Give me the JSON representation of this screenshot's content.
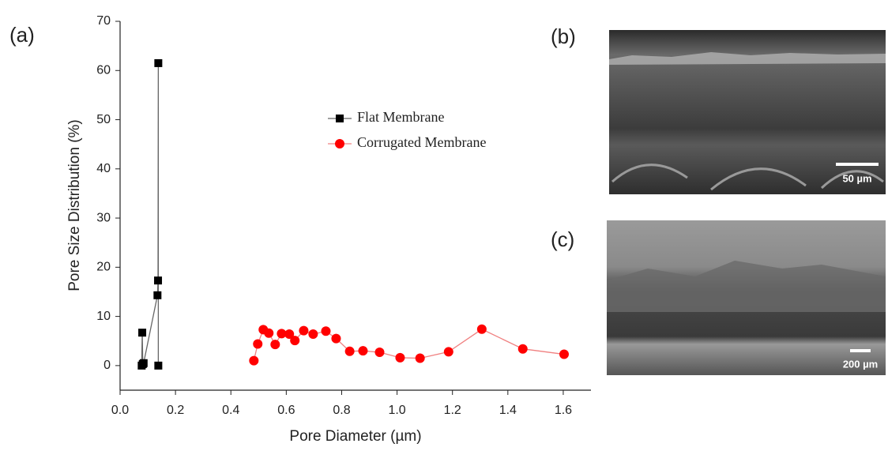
{
  "chart_data": {
    "type": "line",
    "x_label": "Pore Diameter (µm)",
    "y_label": "Pore Size Distribution (%)",
    "xlim": [
      0,
      1.7
    ],
    "ylim": [
      -5,
      70
    ],
    "xticks": [
      {
        "value": 0,
        "label": "0.0"
      },
      0.2,
      0.4,
      0.6,
      0.8,
      {
        "value": 1,
        "label": "1.0"
      },
      1.2,
      1.4,
      1.6
    ],
    "yticks": [
      0,
      10,
      20,
      30,
      40,
      50,
      60,
      70
    ],
    "legend": "upper right",
    "series": [
      {
        "name": "Flat Membrane",
        "color": "#000000",
        "line_color": "#666666",
        "marker": "square",
        "x": [
          0.078,
          0.08,
          0.082,
          0.085,
          0.135,
          0.137,
          0.138,
          0.138
        ],
        "values": [
          0,
          6.7,
          0.3,
          0.5,
          14.3,
          17.3,
          61.5,
          0
        ]
      },
      {
        "name": "Corrugated Membrane",
        "color": "#ff0000",
        "line_color": "#f08080",
        "marker": "circle",
        "x": [
          0.483,
          0.497,
          0.517,
          0.537,
          0.56,
          0.583,
          0.611,
          0.631,
          0.663,
          0.697,
          0.743,
          0.78,
          0.829,
          0.877,
          0.937,
          1.011,
          1.083,
          1.186,
          1.306,
          1.454,
          1.603
        ],
        "values": [
          1.0,
          4.4,
          7.3,
          6.6,
          4.3,
          6.5,
          6.4,
          5.1,
          7.1,
          6.4,
          7.0,
          5.5,
          2.9,
          3.0,
          2.7,
          1.6,
          1.5,
          2.8,
          7.4,
          3.4,
          2.3
        ]
      }
    ]
  },
  "panel_labels": [
    "(a)",
    "(b)",
    "(c)"
  ],
  "scale_bars": [
    "50 µm",
    "200 µm"
  ]
}
